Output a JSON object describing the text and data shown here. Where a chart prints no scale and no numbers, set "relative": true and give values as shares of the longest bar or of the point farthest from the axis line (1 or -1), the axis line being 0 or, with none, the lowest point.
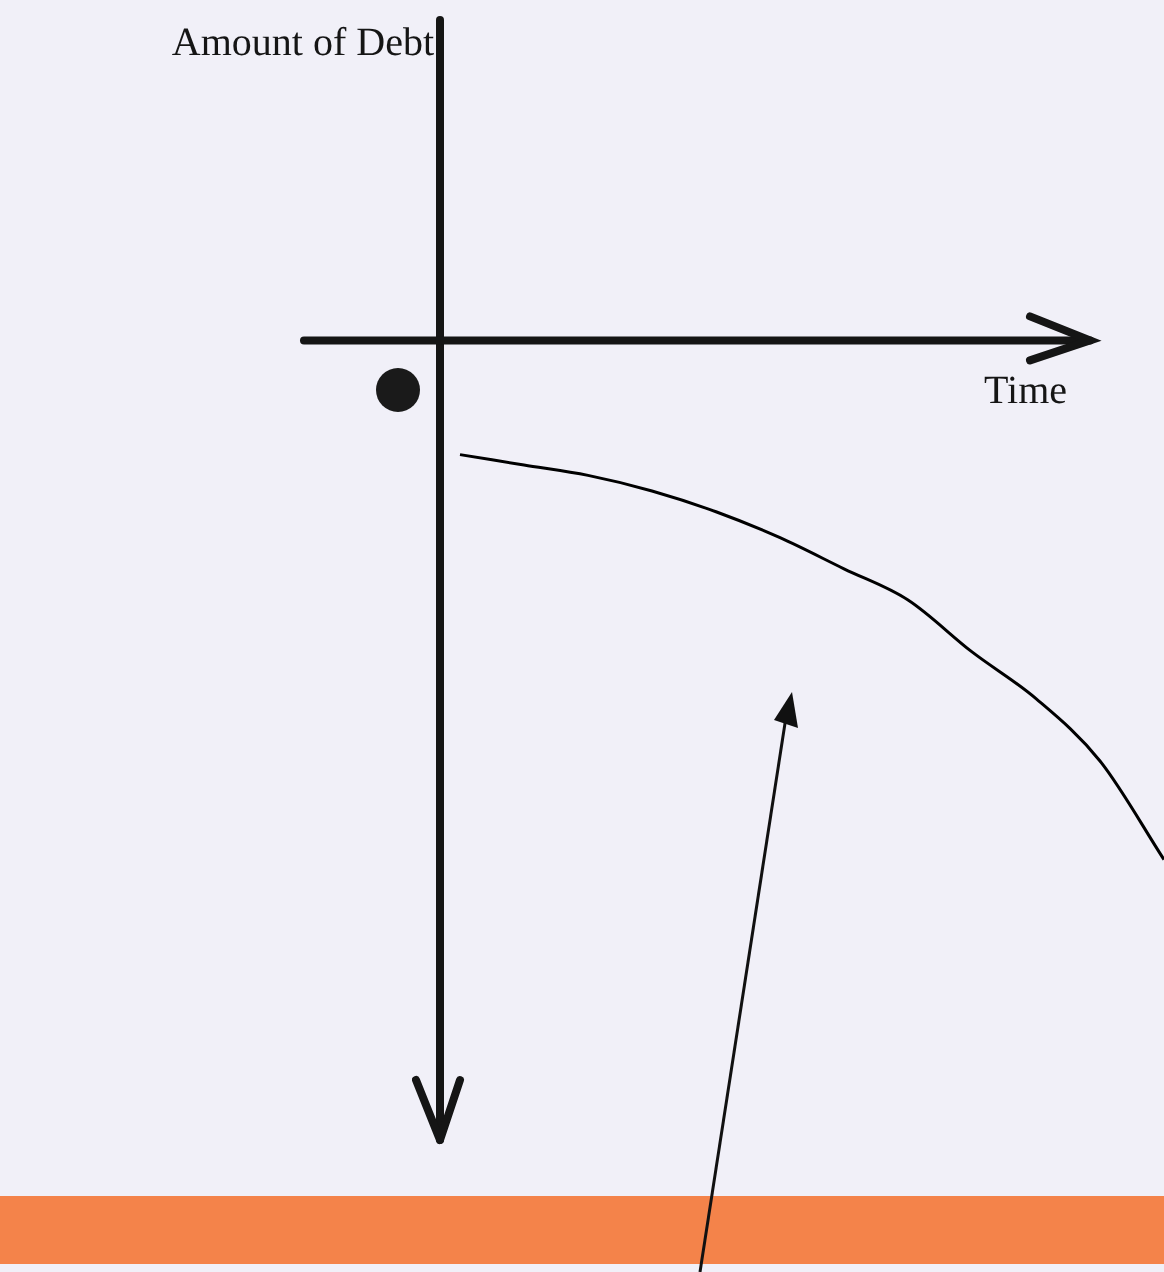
{
  "chart_data": {
    "type": "line",
    "xlabel": "Time",
    "annotations": [
      "Amount of Debt"
    ],
    "relative": true,
    "categories": [
      null,
      null,
      null,
      null,
      null,
      null,
      null,
      null,
      null,
      null,
      null,
      null
    ],
    "series": [
      {
        "color": "#000000",
        "values": [
          -0.22,
          -0.24,
          -0.26,
          -0.29,
          -0.33,
          -0.38,
          -0.44,
          -0.5,
          -0.6,
          -0.69,
          -0.81,
          -1
        ]
      }
    ]
  }
}
